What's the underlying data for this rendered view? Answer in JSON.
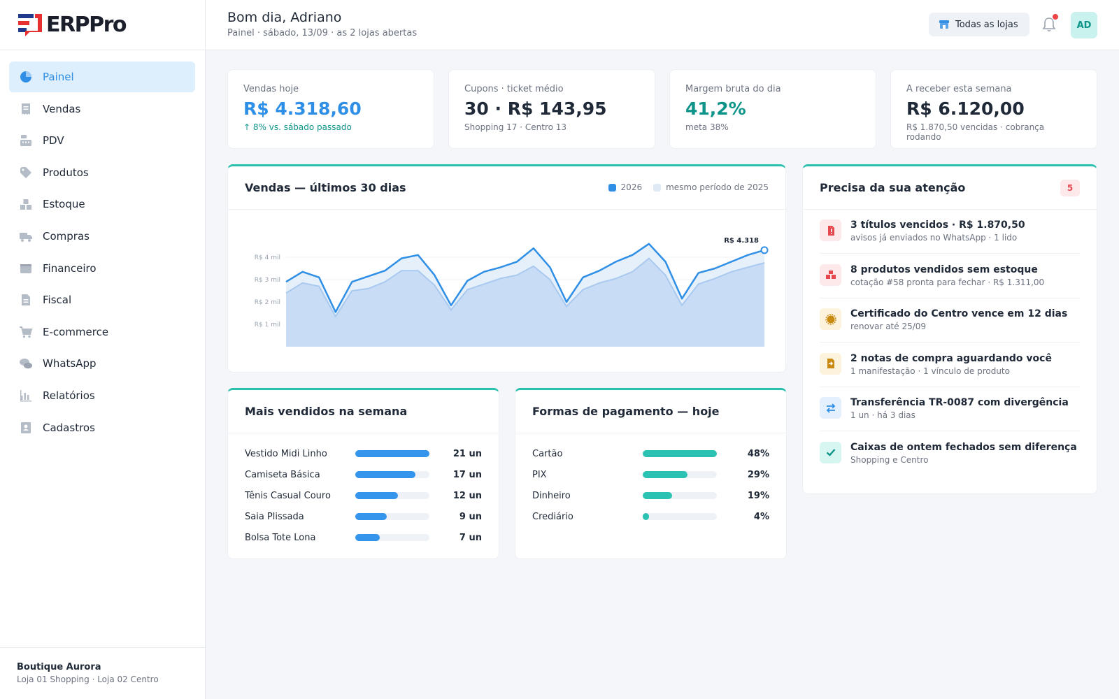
{
  "app": {
    "name": "ERPPro"
  },
  "colors": {
    "accent": "#2f8fe6",
    "teal": "#2bbfae",
    "green_text": "#0e9488",
    "danger": "#e5484d"
  },
  "sidebar": {
    "items": [
      {
        "label": "Painel",
        "icon": "pie-chart-icon",
        "active": true
      },
      {
        "label": "Vendas",
        "icon": "receipt-icon"
      },
      {
        "label": "PDV",
        "icon": "cash-register-icon"
      },
      {
        "label": "Produtos",
        "icon": "tags-icon"
      },
      {
        "label": "Estoque",
        "icon": "boxes-icon"
      },
      {
        "label": "Compras",
        "icon": "truck-icon"
      },
      {
        "label": "Financeiro",
        "icon": "wallet-icon"
      },
      {
        "label": "Fiscal",
        "icon": "document-icon"
      },
      {
        "label": "E-commerce",
        "icon": "cart-icon"
      },
      {
        "label": "WhatsApp",
        "icon": "chat-icon"
      },
      {
        "label": "Relatórios",
        "icon": "bar-chart-icon"
      },
      {
        "label": "Cadastros",
        "icon": "contact-book-icon"
      }
    ],
    "footer": {
      "store": "Boutique Aurora",
      "stores_sub": "Loja 01 Shopping · Loja 02 Centro"
    }
  },
  "header": {
    "greeting": "Bom dia, Adriano",
    "subtitle": "Painel · sábado, 13/09 · as 2 lojas abertas",
    "store_button": "Todas as lojas",
    "avatar": "AD"
  },
  "kpis": [
    {
      "label": "Vendas hoje",
      "value": "R$ 4.318,60",
      "sub": "↑ 8% vs. sábado passado"
    },
    {
      "label": "Cupons · ticket médio",
      "value": "30 · R$ 143,95",
      "sub": "Shopping 17 · Centro 13"
    },
    {
      "label": "Margem bruta do dia",
      "value": "41,2%",
      "sub": "meta 38%"
    },
    {
      "label": "A receber esta semana",
      "value": "R$ 6.120,00",
      "sub": "R$ 1.870,50 vencidas · cobrança rodando"
    }
  ],
  "sales_chart": {
    "title": "Vendas — últimos 30 dias",
    "legend": [
      "2026",
      "mesmo período de 2025"
    ],
    "y_ticks": [
      "R$ 4 mil",
      "R$ 3 mil",
      "R$ 2 mil",
      "R$ 1 mil"
    ],
    "last_label": "R$ 4.318"
  },
  "chart_data": {
    "type": "area",
    "title": "Vendas — últimos 30 dias",
    "xlabel": "",
    "ylabel": "",
    "ylim": [
      0,
      5000
    ],
    "y_ticks": [
      1000,
      2000,
      3000,
      4000
    ],
    "x": [
      1,
      2,
      3,
      4,
      5,
      6,
      7,
      8,
      9,
      10,
      11,
      12,
      13,
      14,
      15,
      16,
      17,
      18,
      19,
      20,
      21,
      22,
      23,
      24,
      25,
      26,
      27,
      28,
      29,
      30
    ],
    "series": [
      {
        "name": "2026",
        "color": "#2f8fe6",
        "values": [
          2900,
          3350,
          3100,
          1550,
          2900,
          3150,
          3400,
          3950,
          4100,
          3200,
          1850,
          2950,
          3350,
          3550,
          3800,
          4400,
          3550,
          2000,
          3100,
          3400,
          3800,
          4100,
          4600,
          3800,
          2150,
          3300,
          3500,
          3800,
          4100,
          4318
        ]
      },
      {
        "name": "mesmo período de 2025",
        "color": "#a9c9ef",
        "values": [
          2400,
          2850,
          2700,
          1350,
          2500,
          2600,
          2900,
          3400,
          3400,
          2750,
          1650,
          2550,
          2800,
          3050,
          3200,
          3600,
          3000,
          1800,
          2550,
          2850,
          3050,
          3350,
          3950,
          3200,
          1850,
          2800,
          3050,
          3350,
          3550,
          3750
        ]
      }
    ]
  },
  "top_sellers": {
    "title": "Mais vendidos na semana",
    "items": [
      {
        "name": "Vestido Midi Linho",
        "value": "21 un",
        "qty": 21
      },
      {
        "name": "Camiseta Básica",
        "value": "17 un",
        "qty": 17
      },
      {
        "name": "Tênis Casual Couro",
        "value": "12 un",
        "qty": 12
      },
      {
        "name": "Saia Plissada",
        "value": "9 un",
        "qty": 9
      },
      {
        "name": "Bolsa Tote Lona",
        "value": "7 un",
        "qty": 7
      }
    ]
  },
  "payments": {
    "title": "Formas de pagamento — hoje",
    "items": [
      {
        "name": "Cartão",
        "value": "48%",
        "pct": 48
      },
      {
        "name": "PIX",
        "value": "29%",
        "pct": 29
      },
      {
        "name": "Dinheiro",
        "value": "19%",
        "pct": 19
      },
      {
        "name": "Crediário",
        "value": "4%",
        "pct": 4
      }
    ]
  },
  "attention": {
    "title": "Precisa da sua atenção",
    "count": "5",
    "items": [
      {
        "title": "3 títulos vencidos · R$ 1.870,50",
        "sub": "avisos já enviados no WhatsApp · 1 lido",
        "icon": "invoice-alert-icon",
        "bg": "#fde8ea",
        "fg": "#e5484d"
      },
      {
        "title": "8 produtos vendidos sem estoque",
        "sub": "cotação #58 pronta para fechar · R$ 1.311,00",
        "icon": "boxes-alert-icon",
        "bg": "#fde8ea",
        "fg": "#e5484d"
      },
      {
        "title": "Certificado do Centro vence em 12 dias",
        "sub": "renovar até 25/09",
        "icon": "certificate-icon",
        "bg": "#fdf3dc",
        "fg": "#c98a12"
      },
      {
        "title": "2 notas de compra aguardando você",
        "sub": "1 manifestação · 1 vínculo de produto",
        "icon": "document-import-icon",
        "bg": "#fdf3dc",
        "fg": "#c98a12"
      },
      {
        "title": "Transferência TR-0087 com divergência",
        "sub": "1 un · há 3 dias",
        "icon": "transfer-icon",
        "bg": "#e4f0fd",
        "fg": "#2f8fe6"
      },
      {
        "title": "Caixas de ontem fechados sem diferença",
        "sub": "Shopping e Centro",
        "icon": "check-icon",
        "bg": "#d7f5f1",
        "fg": "#0e9488"
      }
    ]
  }
}
